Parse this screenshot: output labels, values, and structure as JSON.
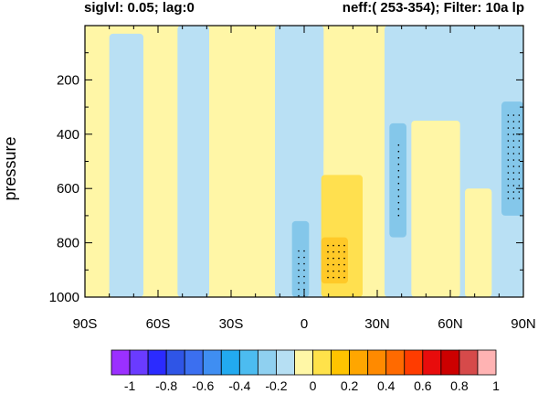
{
  "chart_data": {
    "type": "heatmap",
    "title_left": "siglvl: 0.05; lag:0",
    "title_right": "neff:( 253-354); Filter: 10a lp",
    "xlabel": "",
    "ylabel": "pressure",
    "x_ticks": [
      -90,
      -60,
      -30,
      0,
      30,
      60,
      90
    ],
    "x_tick_labels": [
      "90S",
      "60S",
      "30S",
      "0",
      "30N",
      "60N",
      "90N"
    ],
    "y_ticks": [
      200,
      400,
      600,
      800,
      1000
    ],
    "y_tick_labels": [
      "200",
      "400",
      "600",
      "800",
      "1000"
    ],
    "xlim": [
      -90,
      90
    ],
    "ylim": [
      0,
      1000
    ],
    "y_reversed": true,
    "colorbar": {
      "levels": [
        -1,
        -0.9,
        -0.8,
        -0.7,
        -0.6,
        -0.5,
        -0.4,
        -0.3,
        -0.2,
        -0.1,
        0,
        0.1,
        0.2,
        0.3,
        0.4,
        0.5,
        0.6,
        0.7,
        0.8,
        0.9,
        1
      ],
      "labels": [
        "-1",
        "-0.8",
        "-0.6",
        "-0.4",
        "-0.2",
        "0",
        "0.2",
        "0.4",
        "0.6",
        "0.8",
        "1"
      ],
      "colors": [
        "#9b30ff",
        "#6a3bff",
        "#2b2bff",
        "#2f55e6",
        "#3b6ff0",
        "#3f8ef2",
        "#22aaf0",
        "#4cbcf0",
        "#8fd0f0",
        "#b6dff3",
        "#fff7a6",
        "#ffe24a",
        "#ffc400",
        "#ffa600",
        "#ff8a00",
        "#ff6a00",
        "#ff3c00",
        "#e80c0c",
        "#cc0000",
        "#d64a4a",
        "#ffb3b3"
      ]
    },
    "field_colors": {
      "positive_weak": "#fff6a6",
      "negative_weak": "#b9e0f4",
      "negative_mid": "#84c7ea",
      "positive_mid": "#ffe04f",
      "positive_strong": "#ffc928",
      "negative_strong": "#5fb4e8"
    },
    "regions": [
      {
        "sign": "positive",
        "strength": "weak",
        "lat_range": [
          -90,
          -80
        ],
        "p_range": [
          0,
          1000
        ]
      },
      {
        "sign": "negative",
        "strength": "weak",
        "lat_range": [
          -80,
          -66
        ],
        "p_range": [
          30,
          1000
        ]
      },
      {
        "sign": "positive",
        "strength": "weak",
        "lat_range": [
          -66,
          -53
        ],
        "p_range": [
          0,
          1000
        ]
      },
      {
        "sign": "negative",
        "strength": "weak",
        "lat_range": [
          -52,
          -39
        ],
        "p_range": [
          0,
          1000
        ]
      },
      {
        "sign": "positive",
        "strength": "weak",
        "lat_range": [
          -38,
          -12
        ],
        "p_range": [
          0,
          1000
        ]
      },
      {
        "sign": "negative",
        "strength": "weak",
        "lat_range": [
          -12,
          8
        ],
        "p_range": [
          0,
          1000
        ]
      },
      {
        "sign": "negative",
        "strength": "mid",
        "lat_range": [
          -5,
          2
        ],
        "p_range": [
          720,
          1000
        ]
      },
      {
        "sign": "positive",
        "strength": "weak",
        "lat_range": [
          8,
          33
        ],
        "p_range": [
          450,
          1000
        ]
      },
      {
        "sign": "positive",
        "strength": "mid",
        "lat_range": [
          7,
          24
        ],
        "p_range": [
          550,
          1000
        ]
      },
      {
        "sign": "positive",
        "strength": "strong",
        "lat_range": [
          7,
          18
        ],
        "p_range": [
          780,
          950
        ]
      },
      {
        "sign": "negative",
        "strength": "weak",
        "lat_range": [
          33,
          90
        ],
        "p_range": [
          0,
          1000
        ]
      },
      {
        "sign": "negative",
        "strength": "mid",
        "lat_range": [
          35,
          42
        ],
        "p_range": [
          360,
          780
        ]
      },
      {
        "sign": "negative",
        "strength": "mid",
        "lat_range": [
          81,
          90
        ],
        "p_range": [
          280,
          700
        ]
      },
      {
        "sign": "positive",
        "strength": "weak",
        "lat_range": [
          44,
          64
        ],
        "p_range": [
          350,
          1000
        ]
      },
      {
        "sign": "positive",
        "strength": "weak",
        "lat_range": [
          66,
          77
        ],
        "p_range": [
          600,
          1000
        ]
      }
    ],
    "stipple_regions": [
      {
        "lat_range": [
          -3,
          1
        ],
        "p_range": [
          820,
          1000
        ]
      },
      {
        "lat_range": [
          9,
          18
        ],
        "p_range": [
          800,
          950
        ]
      },
      {
        "lat_range": [
          38,
          41
        ],
        "p_range": [
          430,
          720
        ]
      },
      {
        "lat_range": [
          83,
          89
        ],
        "p_range": [
          320,
          650
        ]
      }
    ]
  }
}
